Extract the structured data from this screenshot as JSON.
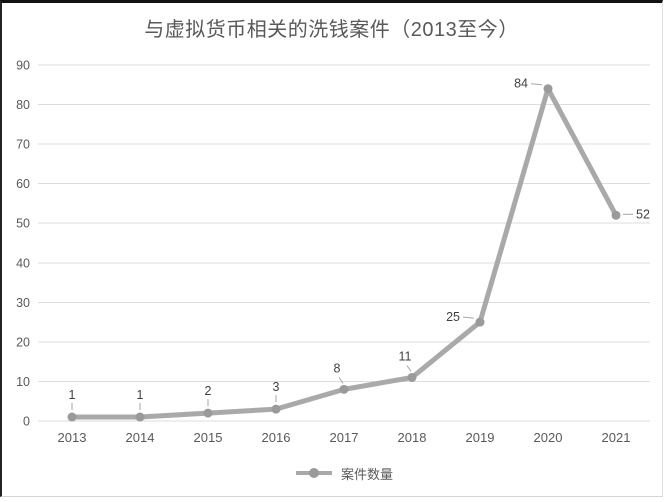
{
  "chart_data": {
    "type": "line",
    "title": "与虚拟货币相关的洗钱案件（2013至今）",
    "categories": [
      "2013",
      "2014",
      "2015",
      "2016",
      "2017",
      "2018",
      "2019",
      "2020",
      "2021"
    ],
    "series": [
      {
        "name": "案件数量",
        "values": [
          1,
          1,
          2,
          3,
          8,
          11,
          25,
          84,
          52
        ]
      }
    ],
    "data_labels": [
      "1",
      "1",
      "2",
      "3",
      "8",
      "11",
      "25",
      "84",
      "52"
    ],
    "label_positions": [
      "above",
      "above",
      "above",
      "above",
      "above-left",
      "above-left",
      "left",
      "left",
      "right"
    ],
    "xlabel": "",
    "ylabel": "",
    "ylim": [
      0,
      90
    ],
    "yticks": [
      0,
      10,
      20,
      30,
      40,
      50,
      60,
      70,
      80,
      90
    ],
    "grid": true,
    "legend_position": "bottom",
    "colors": {
      "line": "#a9a9a9",
      "marker": "#9a9a9a",
      "grid": "#dcdcdc",
      "axis_text": "#595959",
      "data_label": "#3f3f46",
      "leader": "#a6a6a6",
      "title": "#595959",
      "background": "#ffffff"
    }
  }
}
